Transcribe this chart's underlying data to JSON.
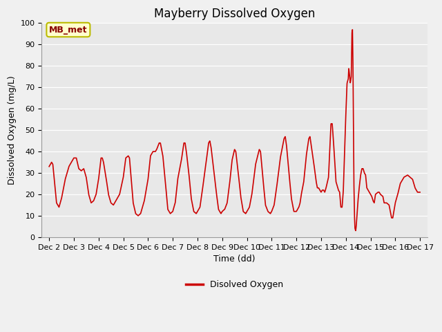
{
  "title": "Mayberry Dissolved Oxygen",
  "xlabel": "Time (dd)",
  "ylabel": "Dissolved Oxygen (mg/L)",
  "legend_label": "Disolved Oxygen",
  "line_color": "#cc0000",
  "annotation_text": "MB_met",
  "annotation_bg": "#ffffcc",
  "annotation_border": "#bbbb00",
  "ylim": [
    0,
    100
  ],
  "xlim_start": 1.7,
  "xlim_end": 17.3,
  "xtick_positions": [
    2,
    3,
    4,
    5,
    6,
    7,
    8,
    9,
    10,
    11,
    12,
    13,
    14,
    15,
    16,
    17
  ],
  "xtick_labels": [
    "Dec 2",
    "Dec 3",
    "Dec 4",
    "Dec 5",
    "Dec 6",
    "Dec 7",
    "Dec 8",
    "Dec 9",
    "Dec 10",
    "Dec 11",
    "Dec 12",
    "Dec 13",
    "Dec 14",
    "Dec 15",
    "Dec 16",
    "Dec 17"
  ],
  "plot_bg": "#e8e8e8",
  "fig_bg": "#f0f0f0",
  "title_fontsize": 12,
  "axis_label_fontsize": 9,
  "tick_fontsize": 8
}
